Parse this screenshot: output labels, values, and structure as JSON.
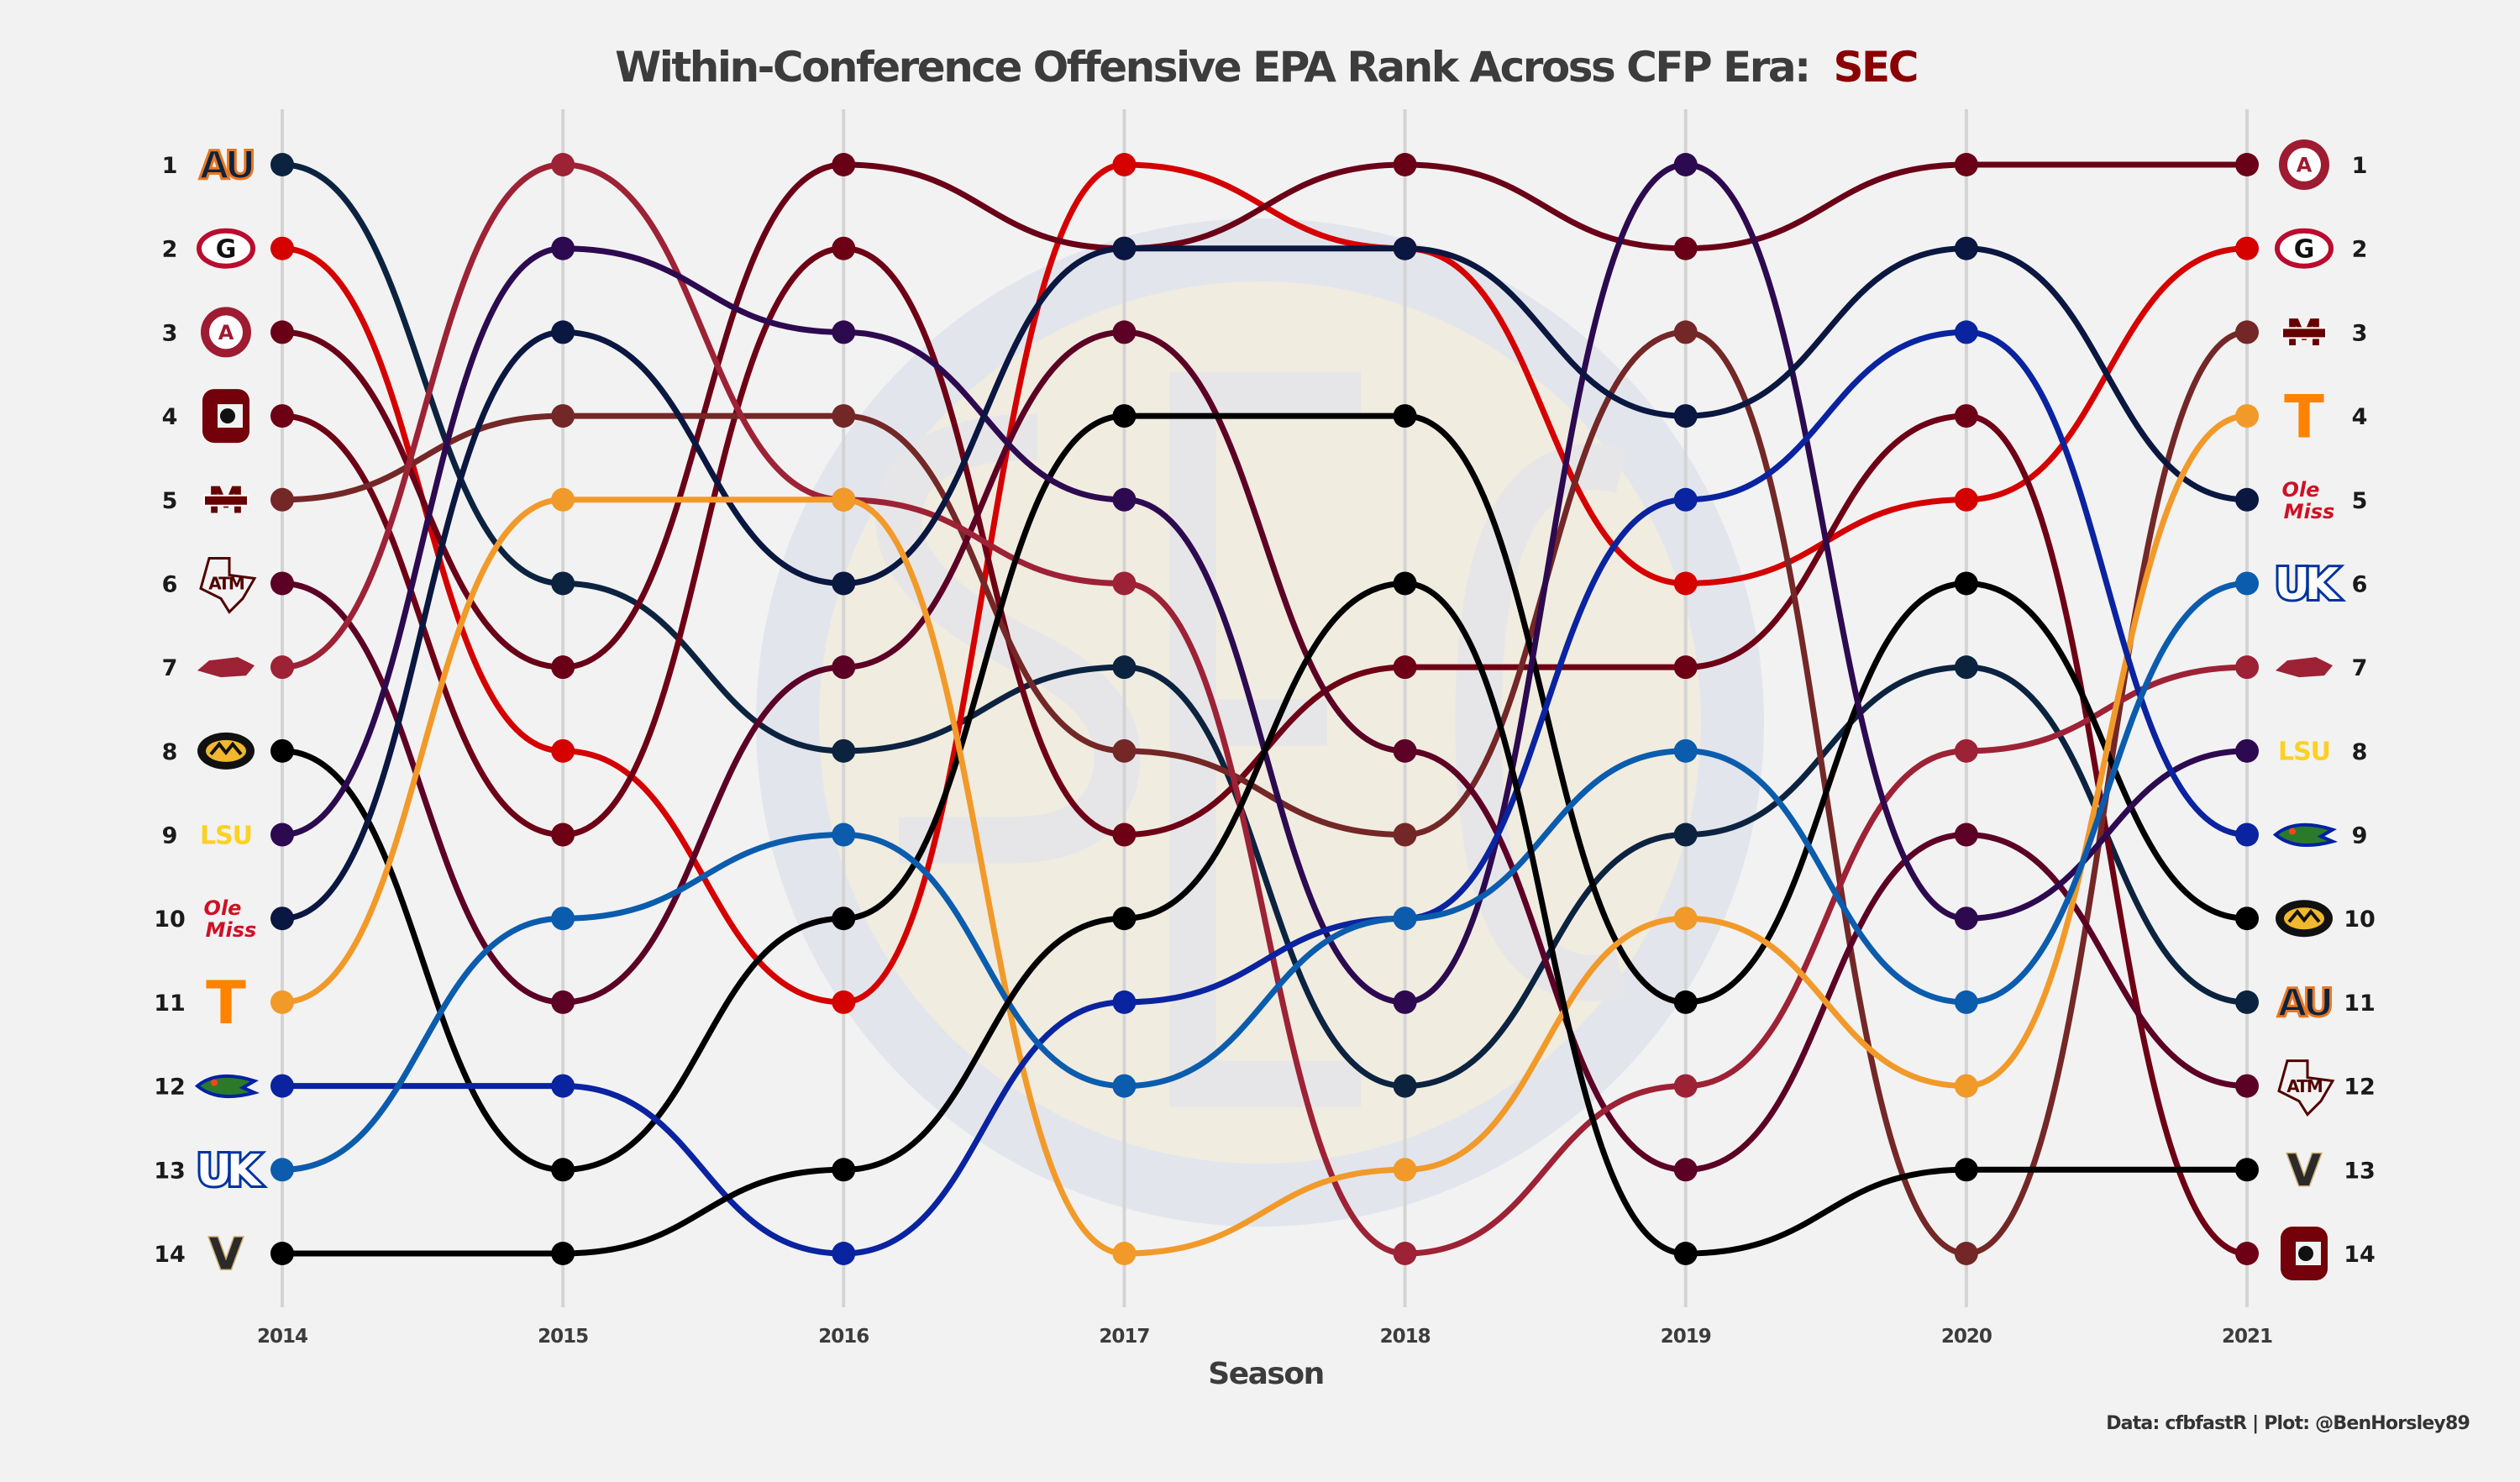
{
  "chart_data": {
    "type": "line",
    "subtype": "bump",
    "title": "Within-Conference Offensive EPA Rank Across CFP Era:",
    "title_highlight": "SEC",
    "title_highlight_color": "#8b0000",
    "xlabel": "Season",
    "caption": "Data: cfbfastR | Plot: @BenHorsley89",
    "x": [
      2014,
      2015,
      2016,
      2017,
      2018,
      2019,
      2020,
      2021
    ],
    "ylim": [
      1,
      14
    ],
    "y_reversed": true,
    "ranks": [
      1,
      2,
      3,
      4,
      5,
      6,
      7,
      8,
      9,
      10,
      11,
      12,
      13,
      14
    ],
    "grid": "vertical",
    "background_logo": "SEC",
    "series": [
      {
        "team": "Auburn",
        "logo": "AU",
        "logo_color": "#0c2340",
        "accent": "#e87722",
        "color": "#0c2340",
        "values": [
          1,
          6,
          8,
          7,
          12,
          9,
          7,
          11
        ]
      },
      {
        "team": "Georgia",
        "logo": "G",
        "logo_color": "#ba0c2f",
        "accent": "#000000",
        "color": "#d50000",
        "values": [
          2,
          8,
          11,
          1,
          2,
          6,
          5,
          2
        ]
      },
      {
        "team": "Alabama",
        "logo": "A",
        "logo_color": "#9e1b32",
        "accent": "#ffffff",
        "color": "#6a0017",
        "values": [
          3,
          7,
          1,
          2,
          1,
          2,
          1,
          1
        ]
      },
      {
        "team": "South Carolina",
        "logo": "C",
        "logo_color": "#73000a",
        "accent": "#000000",
        "color": "#6e0015",
        "values": [
          4,
          9,
          2,
          9,
          7,
          7,
          4,
          14
        ]
      },
      {
        "team": "Mississippi State",
        "logo": "M",
        "logo_color": "#660000",
        "accent": "#ffffff",
        "color": "#742727",
        "values": [
          5,
          4,
          4,
          8,
          9,
          3,
          14,
          3
        ]
      },
      {
        "team": "Texas A&M",
        "logo": "ATM",
        "logo_color": "#500000",
        "accent": "#ffffff",
        "color": "#5c0025",
        "values": [
          6,
          11,
          7,
          3,
          8,
          13,
          9,
          12
        ]
      },
      {
        "team": "Arkansas",
        "logo": "hog",
        "logo_color": "#9d2235",
        "accent": "#9d2235",
        "color": "#9d2235",
        "values": [
          7,
          1,
          5,
          6,
          14,
          12,
          8,
          7
        ]
      },
      {
        "team": "Missouri",
        "logo": "M",
        "logo_color": "#000000",
        "accent": "#f1b82d",
        "color": "#000000",
        "values": [
          8,
          13,
          10,
          4,
          4,
          11,
          6,
          10
        ]
      },
      {
        "team": "LSU",
        "logo": "LSU",
        "logo_color": "#fdd023",
        "accent": "#fdd023",
        "color": "#2d0a50",
        "values": [
          9,
          2,
          3,
          5,
          11,
          1,
          10,
          8
        ]
      },
      {
        "team": "Ole Miss",
        "logo": "Ole Miss",
        "logo_color": "#ce1126",
        "accent": "#14213d",
        "color": "#0a1740",
        "values": [
          10,
          3,
          6,
          2,
          2,
          4,
          2,
          5
        ]
      },
      {
        "team": "Tennessee",
        "logo": "T",
        "logo_color": "#ff8200",
        "accent": "#ff8200",
        "color": "#f19a2a",
        "values": [
          11,
          5,
          5,
          14,
          13,
          10,
          12,
          4
        ]
      },
      {
        "team": "Florida",
        "logo": "gator",
        "logo_color": "#0021a5",
        "accent": "#fa4616",
        "color": "#0a23a0",
        "values": [
          12,
          12,
          14,
          11,
          10,
          5,
          3,
          9
        ]
      },
      {
        "team": "Kentucky",
        "logo": "UK",
        "logo_color": "#0033a0",
        "accent": "#0033a0",
        "color": "#0b5cad",
        "values": [
          13,
          10,
          9,
          12,
          10,
          8,
          11,
          6
        ]
      },
      {
        "team": "Vanderbilt",
        "logo": "V",
        "logo_color": "#1a1a1a",
        "accent": "#cfae70",
        "color": "#000000",
        "values": [
          14,
          14,
          13,
          10,
          6,
          14,
          13,
          13
        ]
      }
    ]
  }
}
